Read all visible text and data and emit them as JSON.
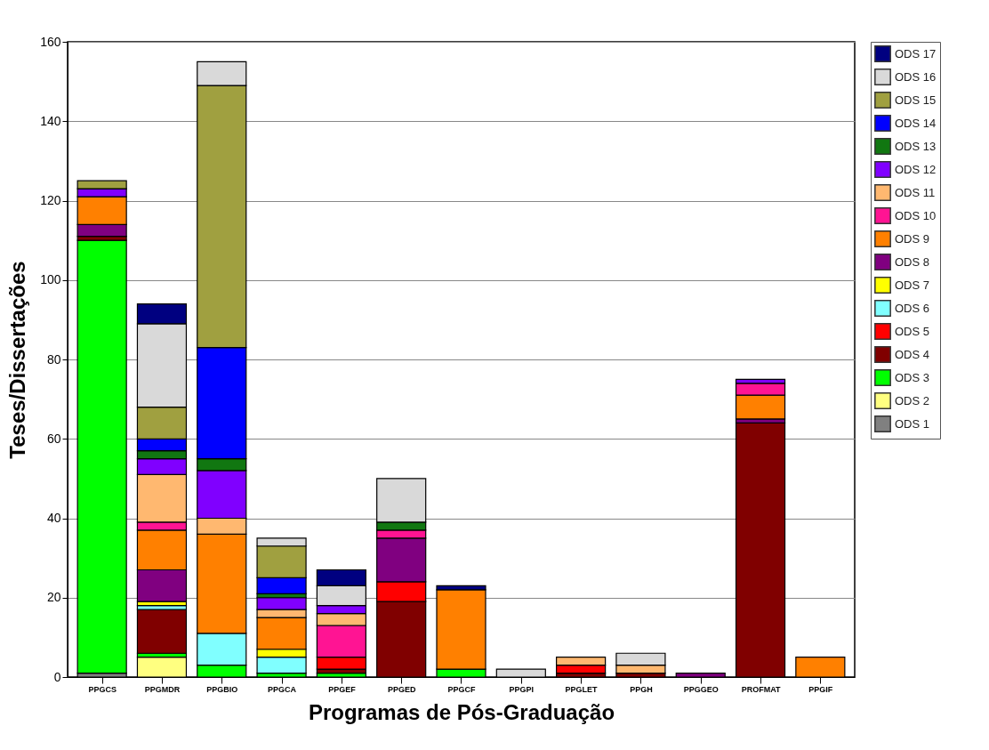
{
  "chart_data": {
    "type": "bar",
    "stacked": true,
    "xlabel": "Programas de Pós-Graduação",
    "ylabel": "Teses/Dissertações",
    "categories": [
      "PPGCS",
      "PPGMDR",
      "PPGBIO",
      "PPGCA",
      "PPGEF",
      "PPGED",
      "PPGCF",
      "PPGPI",
      "PPGLET",
      "PPGH",
      "PPGGEO",
      "PROFMAT",
      "PPGIF"
    ],
    "ylim": [
      0,
      160
    ],
    "yticks": [
      0,
      20,
      40,
      60,
      80,
      100,
      120,
      140,
      160
    ],
    "grid": "y",
    "legend": "right",
    "series": [
      {
        "name": "ODS 1",
        "color": "#808080",
        "values": [
          1,
          null,
          null,
          null,
          null,
          null,
          null,
          null,
          null,
          null,
          null,
          null,
          null
        ]
      },
      {
        "name": "ODS 2",
        "color": "#ffff80",
        "values": [
          null,
          5,
          null,
          null,
          null,
          null,
          null,
          null,
          null,
          null,
          null,
          null,
          null
        ]
      },
      {
        "name": "ODS 3",
        "color": "#00ff00",
        "values": [
          109,
          1,
          3,
          1,
          1,
          null,
          2,
          null,
          null,
          null,
          null,
          null,
          null
        ]
      },
      {
        "name": "ODS 4",
        "color": "#800000",
        "values": [
          1,
          11,
          null,
          null,
          1,
          19,
          null,
          null,
          1,
          1,
          null,
          64,
          null
        ]
      },
      {
        "name": "ODS 5",
        "color": "#ff0000",
        "values": [
          null,
          null,
          null,
          null,
          3,
          5,
          null,
          null,
          2,
          null,
          null,
          null,
          null
        ]
      },
      {
        "name": "ODS 6",
        "color": "#80ffff",
        "values": [
          null,
          1,
          8,
          4,
          null,
          null,
          null,
          null,
          null,
          null,
          null,
          null,
          null
        ]
      },
      {
        "name": "ODS 7",
        "color": "#ffff00",
        "values": [
          null,
          1,
          null,
          2,
          null,
          null,
          null,
          null,
          null,
          null,
          null,
          null,
          null
        ]
      },
      {
        "name": "ODS 8",
        "color": "#800080",
        "values": [
          3,
          8,
          null,
          null,
          null,
          11,
          null,
          null,
          null,
          null,
          1,
          1,
          null
        ]
      },
      {
        "name": "ODS 9",
        "color": "#ff8000",
        "values": [
          7,
          10,
          25,
          8,
          null,
          null,
          20,
          null,
          null,
          null,
          null,
          6,
          5
        ]
      },
      {
        "name": "ODS 10",
        "color": "#ff1493",
        "values": [
          null,
          2,
          null,
          null,
          8,
          2,
          null,
          null,
          null,
          null,
          null,
          3,
          null
        ]
      },
      {
        "name": "ODS 11",
        "color": "#ffb870",
        "values": [
          null,
          12,
          4,
          2,
          3,
          null,
          null,
          null,
          2,
          2,
          null,
          null,
          null
        ]
      },
      {
        "name": "ODS 12",
        "color": "#8000ff",
        "values": [
          2,
          4,
          12,
          3,
          2,
          null,
          null,
          null,
          null,
          null,
          null,
          1,
          null
        ]
      },
      {
        "name": "ODS 13",
        "color": "#117711",
        "values": [
          null,
          2,
          3,
          1,
          null,
          2,
          null,
          null,
          null,
          null,
          null,
          null,
          null
        ]
      },
      {
        "name": "ODS 14",
        "color": "#0000ff",
        "values": [
          null,
          3,
          28,
          4,
          null,
          null,
          null,
          null,
          null,
          null,
          null,
          null,
          null
        ]
      },
      {
        "name": "ODS 15",
        "color": "#a0a040",
        "values": [
          2,
          8,
          66,
          8,
          null,
          null,
          null,
          null,
          null,
          null,
          null,
          null,
          null
        ]
      },
      {
        "name": "ODS 16",
        "color": "#d9d9d9",
        "values": [
          null,
          21,
          6,
          2,
          5,
          11,
          null,
          2,
          null,
          3,
          null,
          null,
          null
        ]
      },
      {
        "name": "ODS 17",
        "color": "#000080",
        "values": [
          null,
          5,
          null,
          null,
          4,
          null,
          1,
          null,
          null,
          null,
          null,
          null,
          null
        ]
      }
    ]
  }
}
